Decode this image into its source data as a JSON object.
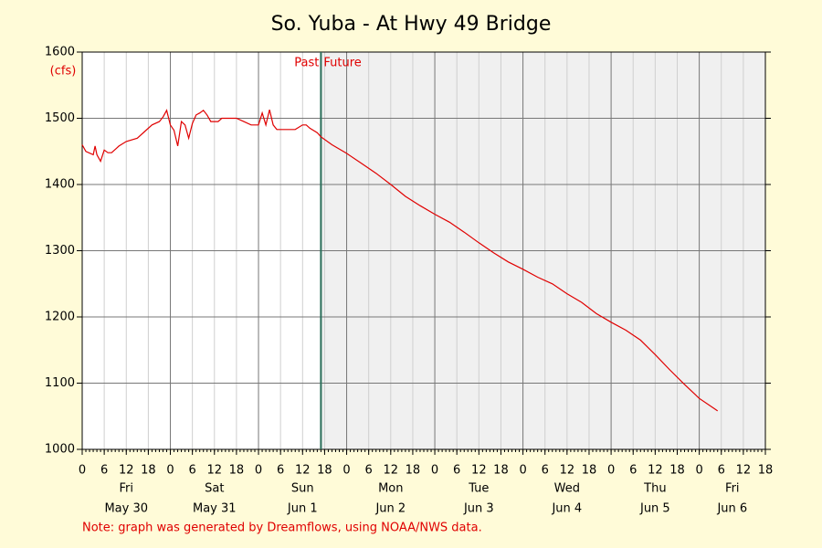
{
  "chart_data": {
    "type": "line",
    "title": "So. Yuba - At Hwy 49 Bridge",
    "y_label": "(cfs)",
    "note": "Note: graph was generated by Dreamflows, using NOAA/NWS data.",
    "divider": {
      "x": 65,
      "labels": [
        "Past",
        "Future"
      ],
      "color": "#2a6e5a"
    },
    "future_shade": "#f0f0f0",
    "grid": true,
    "x": [
      0,
      1,
      3,
      3.5,
      4,
      5,
      6,
      7,
      8,
      10,
      12,
      15,
      17,
      19,
      21,
      22,
      23,
      24,
      25,
      26,
      27,
      28,
      29,
      30,
      31,
      32,
      33,
      34,
      35,
      37,
      38,
      42,
      44,
      46,
      48,
      49,
      50,
      51,
      52,
      53,
      58,
      60,
      61,
      62,
      64,
      65,
      68,
      72,
      76,
      80,
      84,
      88,
      92,
      96,
      100,
      104,
      108,
      112,
      116,
      120,
      124,
      128,
      132,
      136,
      140,
      144,
      148,
      152,
      156,
      160,
      164,
      168,
      172,
      173
    ],
    "series": [
      {
        "name": "Flow",
        "color": "#e00000",
        "values": [
          1460,
          1450,
          1445,
          1458,
          1445,
          1435,
          1452,
          1448,
          1448,
          1458,
          1465,
          1470,
          1480,
          1490,
          1495,
          1502,
          1512,
          1490,
          1482,
          1458,
          1495,
          1490,
          1470,
          1492,
          1505,
          1508,
          1512,
          1505,
          1495,
          1495,
          1500,
          1500,
          1495,
          1490,
          1490,
          1508,
          1490,
          1513,
          1490,
          1483,
          1483,
          1490,
          1490,
          1485,
          1478,
          1472,
          1460,
          1447,
          1432,
          1417,
          1400,
          1382,
          1368,
          1355,
          1343,
          1328,
          1312,
          1297,
          1283,
          1272,
          1260,
          1250,
          1235,
          1222,
          1205,
          1192,
          1180,
          1165,
          1143,
          1120,
          1098,
          1077,
          1062,
          1058
        ]
      }
    ],
    "xlim": [
      0,
      186
    ],
    "xticks": [
      0,
      6,
      12,
      18,
      {
        "value": 24,
        "label": "0"
      },
      {
        "value": 30,
        "label": "6"
      },
      {
        "value": 36,
        "label": "12"
      },
      {
        "value": 42,
        "label": "18"
      },
      {
        "value": 48,
        "label": "0"
      },
      {
        "value": 54,
        "label": "6"
      },
      {
        "value": 60,
        "label": "12"
      },
      {
        "value": 66,
        "label": "18"
      },
      {
        "value": 72,
        "label": "0"
      },
      {
        "value": 78,
        "label": "6"
      },
      {
        "value": 84,
        "label": "12"
      },
      {
        "value": 90,
        "label": "18"
      },
      {
        "value": 96,
        "label": "0"
      },
      {
        "value": 102,
        "label": "6"
      },
      {
        "value": 108,
        "label": "12"
      },
      {
        "value": 114,
        "label": "18"
      },
      {
        "value": 120,
        "label": "0"
      },
      {
        "value": 126,
        "label": "6"
      },
      {
        "value": 132,
        "label": "12"
      },
      {
        "value": 138,
        "label": "18"
      },
      {
        "value": 144,
        "label": "0"
      },
      {
        "value": 150,
        "label": "6"
      },
      {
        "value": 156,
        "label": "12"
      },
      {
        "value": 162,
        "label": "18"
      },
      {
        "value": 168,
        "label": "0"
      },
      {
        "value": 174,
        "label": "6"
      },
      {
        "value": 180,
        "label": "12"
      },
      {
        "value": 186,
        "label": "18"
      }
    ],
    "day_labels": [
      {
        "value": 12,
        "weekday": "Fri",
        "date": "May 30"
      },
      {
        "value": 36,
        "weekday": "Sat",
        "date": "May 31"
      },
      {
        "value": 60,
        "weekday": "Sun",
        "date": "Jun 1"
      },
      {
        "value": 84,
        "weekday": "Mon",
        "date": "Jun 2"
      },
      {
        "value": 108,
        "weekday": "Tue",
        "date": "Jun 3"
      },
      {
        "value": 132,
        "weekday": "Wed",
        "date": "Jun 4"
      },
      {
        "value": 156,
        "weekday": "Thu",
        "date": "Jun 5"
      },
      {
        "value": 177,
        "weekday": "Fri",
        "date": "Jun 6"
      }
    ],
    "ylim": [
      1000,
      1600
    ],
    "yticks": [
      1000,
      1100,
      1200,
      1300,
      1400,
      1500,
      1600
    ]
  }
}
